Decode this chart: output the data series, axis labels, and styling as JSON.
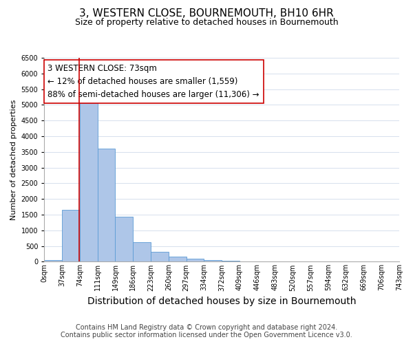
{
  "title": "3, WESTERN CLOSE, BOURNEMOUTH, BH10 6HR",
  "subtitle": "Size of property relative to detached houses in Bournemouth",
  "xlabel": "Distribution of detached houses by size in Bournemouth",
  "ylabel": "Number of detached properties",
  "bin_labels": [
    "0sqm",
    "37sqm",
    "74sqm",
    "111sqm",
    "149sqm",
    "186sqm",
    "223sqm",
    "260sqm",
    "297sqm",
    "334sqm",
    "372sqm",
    "409sqm",
    "446sqm",
    "483sqm",
    "520sqm",
    "557sqm",
    "594sqm",
    "632sqm",
    "669sqm",
    "706sqm",
    "743sqm"
  ],
  "bar_values": [
    50,
    1650,
    5080,
    3600,
    1430,
    620,
    305,
    155,
    100,
    50,
    25,
    10,
    0,
    0,
    0,
    0,
    0,
    0,
    0,
    0
  ],
  "bar_color": "#aec6e8",
  "bar_edge_color": "#5b9bd5",
  "property_line_color": "#cc0000",
  "annotation_text": "3 WESTERN CLOSE: 73sqm\n← 12% of detached houses are smaller (1,559)\n88% of semi-detached houses are larger (11,306) →",
  "annotation_box_color": "#ffffff",
  "annotation_box_edge": "#cc0000",
  "ylim": [
    0,
    6500
  ],
  "yticks": [
    0,
    500,
    1000,
    1500,
    2000,
    2500,
    3000,
    3500,
    4000,
    4500,
    5000,
    5500,
    6000,
    6500
  ],
  "footer_line1": "Contains HM Land Registry data © Crown copyright and database right 2024.",
  "footer_line2": "Contains public sector information licensed under the Open Government Licence v3.0.",
  "title_fontsize": 11,
  "subtitle_fontsize": 9,
  "xlabel_fontsize": 10,
  "ylabel_fontsize": 8,
  "tick_fontsize": 7,
  "annotation_fontsize": 8.5,
  "footer_fontsize": 7
}
